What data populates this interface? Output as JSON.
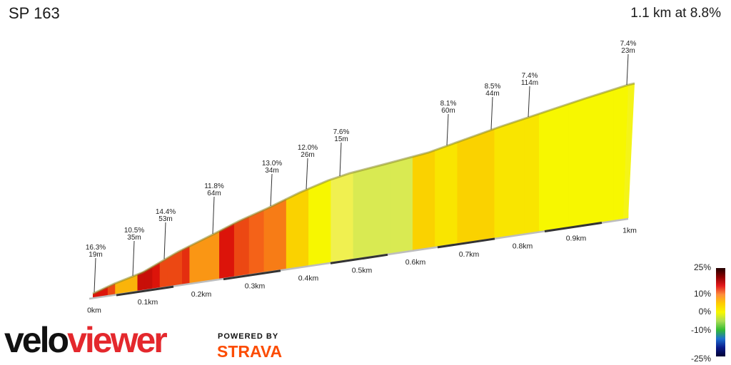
{
  "header": {
    "title": "SP 163",
    "summary": "1.1 km at 8.8%"
  },
  "chart_data": {
    "type": "area",
    "x_unit": "km",
    "x_ticks": [
      "0km",
      "0.1km",
      "0.2km",
      "0.3km",
      "0.4km",
      "0.5km",
      "0.6km",
      "0.7km",
      "0.8km",
      "0.9km",
      "1km"
    ],
    "segments": [
      {
        "grade": 16.3,
        "gain_m": 19
      },
      {
        "grade": 10.5,
        "gain_m": 35
      },
      {
        "grade": 14.4,
        "gain_m": 53
      },
      {
        "grade": 11.8,
        "gain_m": 64
      },
      {
        "grade": 13.0,
        "gain_m": 34
      },
      {
        "grade": 12.0,
        "gain_m": 26
      },
      {
        "grade": 7.6,
        "gain_m": 15
      },
      {
        "grade": 8.1,
        "gain_m": 60
      },
      {
        "grade": 8.5,
        "gain_m": 44
      },
      {
        "grade": 7.4,
        "gain_m": 114
      },
      {
        "grade": 7.4,
        "gain_m": 23
      }
    ],
    "annotations": [
      {
        "grade_label": "16.3%",
        "gain_label": "19m"
      },
      {
        "grade_label": "10.5%",
        "gain_label": "35m"
      },
      {
        "grade_label": "14.4%",
        "gain_label": "53m"
      },
      {
        "grade_label": "11.8%",
        "gain_label": "64m"
      },
      {
        "grade_label": "13.0%",
        "gain_label": "34m"
      },
      {
        "grade_label": "12.0%",
        "gain_label": "26m"
      },
      {
        "grade_label": "7.6%",
        "gain_label": "15m"
      },
      {
        "grade_label": "8.1%",
        "gain_label": "60m"
      },
      {
        "grade_label": "8.5%",
        "gain_label": "44m"
      },
      {
        "grade_label": "7.4%",
        "gain_label": "114m"
      },
      {
        "grade_label": "7.4%",
        "gain_label": "23m"
      }
    ],
    "strip_grades": [
      16,
      16,
      14,
      10,
      10,
      10,
      17,
      17,
      16,
      14,
      14,
      14,
      15,
      11,
      11,
      11,
      11,
      16,
      16,
      14,
      14,
      13,
      13,
      12,
      12,
      12,
      9,
      9,
      9,
      7,
      7,
      7,
      6,
      6,
      6,
      5,
      5,
      5,
      5,
      5,
      5,
      5,
      5,
      9,
      9,
      9,
      8,
      8,
      8,
      9,
      9,
      9,
      9,
      9,
      8,
      8,
      8,
      8,
      8,
      8,
      7,
      7,
      7,
      7,
      7,
      7,
      7,
      7,
      7,
      7,
      7,
      7
    ],
    "legend": {
      "labels": [
        "25%",
        "10%",
        "0%",
        "-10%",
        "-25%"
      ],
      "values": [
        25,
        10,
        0,
        -10,
        -25
      ],
      "colors": [
        "#220000",
        "#8b0000",
        "#e31a1c",
        "#fd8d3c",
        "#fecc00",
        "#f7f700",
        "#aadd55",
        "#33bb33",
        "#1e6fd0",
        "#0a1a8a",
        "#000033"
      ]
    }
  },
  "branding": {
    "velo": "velo",
    "viewer": "viewer",
    "powered": "POWERED BY",
    "strava": "STRAVA",
    "velo_color": "#111111",
    "viewer_color": "#e4282d",
    "strava_color": "#fc4c02"
  }
}
